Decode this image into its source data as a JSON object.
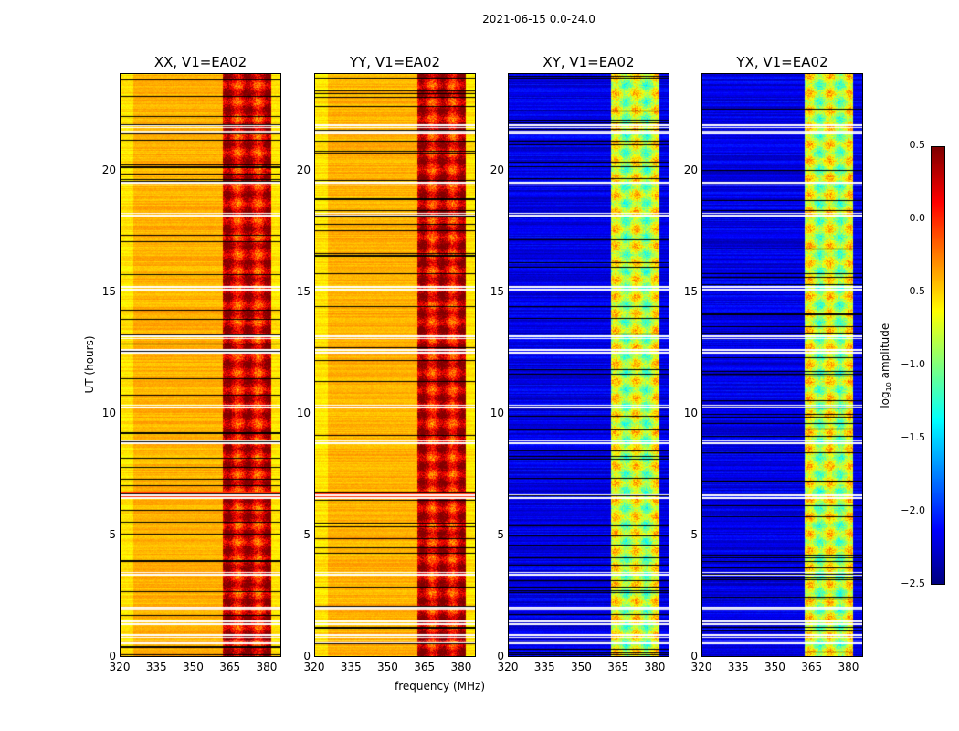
{
  "chart_data": {
    "type": "heatmap",
    "suptitle": "2021-06-15 0.0-24.0",
    "xlabel": "frequency (MHz)",
    "ylabel": "UT (hours)",
    "xlim": [
      320,
      386
    ],
    "ylim": [
      0,
      24
    ],
    "xticks": [
      "320",
      "335",
      "350",
      "365",
      "380"
    ],
    "yticks": [
      "0",
      "5",
      "10",
      "15",
      "20"
    ],
    "panels": [
      {
        "title": "XX, V1=EA02",
        "baseline_log_amp": -0.4,
        "band_log_amp": 0.2
      },
      {
        "title": "YY, V1=EA02",
        "baseline_log_amp": -0.4,
        "band_log_amp": 0.2
      },
      {
        "title": "XY, V1=EA02",
        "baseline_log_amp": -2.2,
        "band_log_amp": -0.8
      },
      {
        "title": "YX, V1=EA02",
        "baseline_log_amp": -2.2,
        "band_log_amp": -0.8
      }
    ],
    "rfi_band_mhz": [
      362,
      382
    ],
    "flagged_hours": [
      0.55,
      0.85,
      1.4,
      2.0,
      3.4,
      6.6,
      8.8,
      10.3,
      12.6,
      13.2,
      15.2,
      18.2,
      19.5,
      21.6,
      21.9
    ],
    "colorbar": {
      "label": "log10 amplitude",
      "min": -2.5,
      "max": 0.5,
      "ticks": [
        "0.5",
        "0.0",
        "−0.5",
        "−1.0",
        "−1.5",
        "−2.0",
        "−2.5"
      ],
      "colormap": "jet"
    }
  }
}
